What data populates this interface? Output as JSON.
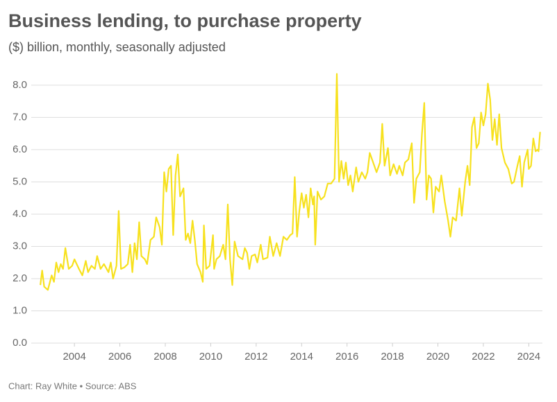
{
  "chart_data": {
    "type": "line",
    "title": "Business lending, to purchase property",
    "subtitle": "($) billion, monthly, seasonally adjusted",
    "footer": "Chart: Ray White • Source: ABS",
    "color": "#f7e11d",
    "grid": true,
    "xlim": [
      2002.1,
      2024.6
    ],
    "xticks": [
      2004,
      2006,
      2008,
      2010,
      2012,
      2014,
      2016,
      2018,
      2020,
      2022,
      2024
    ],
    "ylim": [
      0,
      8.6
    ],
    "yticks": [
      {
        "value": 0,
        "label": "0.0"
      },
      {
        "value": 1,
        "label": "1.0"
      },
      {
        "value": 2,
        "label": "2.0"
      },
      {
        "value": 3,
        "label": "3.0"
      },
      {
        "value": 4,
        "label": "4.0"
      },
      {
        "value": 5,
        "label": "5.0"
      },
      {
        "value": 6,
        "label": "6.0"
      },
      {
        "value": 7,
        "label": "7.0"
      },
      {
        "value": 8,
        "label": "8.0"
      }
    ],
    "x": [
      2002.5,
      2002.58,
      2002.67,
      2002.83,
      2003.0,
      2003.1,
      2003.2,
      2003.3,
      2003.4,
      2003.5,
      2003.6,
      2003.75,
      2003.9,
      2004.0,
      2004.2,
      2004.35,
      2004.5,
      2004.6,
      2004.75,
      2004.9,
      2005.0,
      2005.15,
      2005.3,
      2005.5,
      2005.6,
      2005.7,
      2005.85,
      2005.95,
      2006.05,
      2006.2,
      2006.35,
      2006.45,
      2006.55,
      2006.65,
      2006.75,
      2006.85,
      2006.95,
      2007.1,
      2007.2,
      2007.35,
      2007.5,
      2007.6,
      2007.75,
      2007.85,
      2007.95,
      2008.05,
      2008.15,
      2008.25,
      2008.35,
      2008.45,
      2008.55,
      2008.65,
      2008.8,
      2008.9,
      2009.0,
      2009.1,
      2009.2,
      2009.3,
      2009.4,
      2009.55,
      2009.65,
      2009.7,
      2009.8,
      2009.95,
      2010.1,
      2010.15,
      2010.25,
      2010.4,
      2010.55,
      2010.65,
      2010.75,
      2010.85,
      2010.95,
      2011.05,
      2011.2,
      2011.4,
      2011.5,
      2011.6,
      2011.7,
      2011.8,
      2011.95,
      2012.05,
      2012.2,
      2012.3,
      2012.5,
      2012.6,
      2012.75,
      2012.9,
      2013.05,
      2013.2,
      2013.35,
      2013.5,
      2013.6,
      2013.7,
      2013.8,
      2013.9,
      2014.0,
      2014.1,
      2014.2,
      2014.3,
      2014.4,
      2014.5,
      2014.55,
      2014.6,
      2014.7,
      2014.85,
      2015.0,
      2015.15,
      2015.3,
      2015.45,
      2015.55,
      2015.65,
      2015.75,
      2015.85,
      2015.95,
      2016.05,
      2016.15,
      2016.25,
      2016.4,
      2016.5,
      2016.65,
      2016.8,
      2016.9,
      2017.0,
      2017.15,
      2017.3,
      2017.45,
      2017.55,
      2017.65,
      2017.8,
      2017.9,
      2018.05,
      2018.2,
      2018.3,
      2018.45,
      2018.55,
      2018.7,
      2018.85,
      2018.95,
      2019.05,
      2019.2,
      2019.3,
      2019.4,
      2019.5,
      2019.6,
      2019.7,
      2019.8,
      2019.9,
      2020.05,
      2020.15,
      2020.3,
      2020.45,
      2020.55,
      2020.65,
      2020.8,
      2020.95,
      2021.05,
      2021.2,
      2021.3,
      2021.4,
      2021.5,
      2021.6,
      2021.7,
      2021.8,
      2021.9,
      2022.0,
      2022.1,
      2022.2,
      2022.3,
      2022.4,
      2022.5,
      2022.6,
      2022.7,
      2022.8,
      2022.95,
      2023.1,
      2023.25,
      2023.35,
      2023.5,
      2023.6,
      2023.7,
      2023.8,
      2023.95,
      2024.0,
      2024.1,
      2024.2,
      2024.3,
      2024.38,
      2024.43,
      2024.5
    ],
    "values": [
      1.8,
      2.25,
      1.75,
      1.65,
      2.1,
      1.9,
      2.5,
      2.2,
      2.45,
      2.3,
      2.95,
      2.3,
      2.4,
      2.6,
      2.3,
      2.1,
      2.55,
      2.2,
      2.4,
      2.3,
      2.7,
      2.3,
      2.45,
      2.2,
      2.5,
      2.0,
      2.4,
      4.1,
      2.3,
      2.35,
      2.45,
      3.05,
      2.2,
      3.1,
      2.6,
      3.75,
      2.7,
      2.6,
      2.45,
      3.2,
      3.3,
      3.9,
      3.6,
      3.05,
      5.3,
      4.7,
      5.4,
      5.5,
      3.35,
      5.2,
      5.85,
      4.55,
      4.8,
      3.2,
      3.4,
      3.1,
      3.8,
      3.2,
      2.45,
      2.2,
      1.9,
      3.65,
      2.3,
      2.4,
      3.35,
      2.3,
      2.6,
      2.7,
      3.05,
      2.6,
      4.3,
      2.6,
      1.8,
      3.15,
      2.7,
      2.6,
      2.95,
      2.8,
      2.3,
      2.7,
      2.75,
      2.5,
      3.05,
      2.6,
      2.65,
      3.3,
      2.7,
      3.1,
      2.7,
      3.3,
      3.2,
      3.35,
      3.4,
      5.15,
      3.3,
      4.1,
      4.65,
      4.2,
      4.6,
      3.9,
      4.8,
      4.3,
      4.55,
      3.05,
      4.7,
      4.45,
      4.55,
      4.95,
      4.95,
      5.1,
      8.35,
      5.0,
      5.65,
      5.1,
      5.6,
      4.9,
      5.2,
      4.7,
      5.45,
      5.0,
      5.3,
      5.1,
      5.3,
      5.9,
      5.6,
      5.3,
      5.6,
      6.8,
      5.5,
      6.05,
      5.2,
      5.55,
      5.25,
      5.5,
      5.2,
      5.6,
      5.7,
      6.2,
      4.35,
      5.1,
      5.3,
      6.5,
      7.45,
      4.45,
      5.2,
      5.1,
      4.05,
      4.85,
      4.7,
      5.2,
      4.4,
      3.8,
      3.3,
      3.9,
      3.8,
      4.8,
      3.95,
      5.0,
      5.5,
      4.9,
      6.7,
      7.0,
      6.05,
      6.2,
      7.15,
      6.75,
      7.1,
      8.05,
      7.55,
      6.3,
      6.95,
      6.15,
      7.1,
      6.05,
      5.6,
      5.4,
      4.95,
      5.0,
      5.5,
      5.8,
      4.85,
      5.6,
      6.0,
      5.4,
      5.5,
      6.35,
      5.95,
      6.0,
      5.95,
      6.55
    ]
  }
}
